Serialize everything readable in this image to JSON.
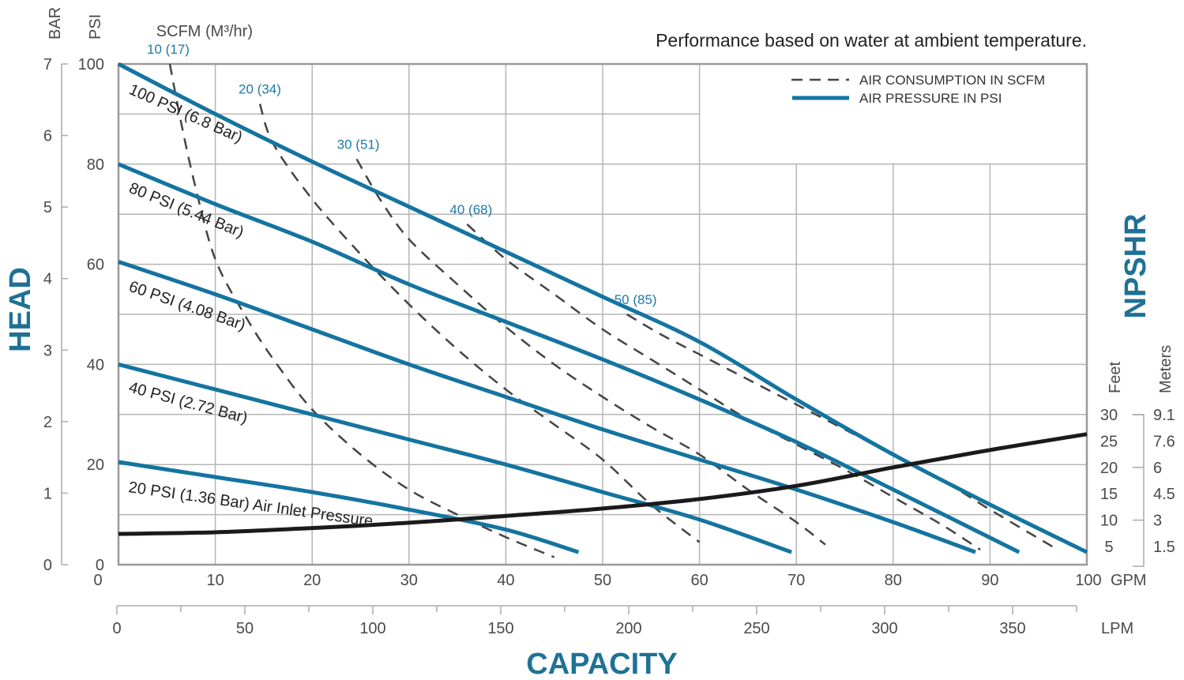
{
  "chart_data": {
    "type": "line",
    "title": "Performance based on water at ambient temperature.",
    "xlabel": "CAPACITY",
    "ylabel": "HEAD",
    "y2label": "NPSHR",
    "x_unit": "GPM",
    "x2_unit": "LPM",
    "y_unit_psi": "PSI",
    "y_unit_bar": "BAR",
    "scfm_header": "SCFM (M³/hr)",
    "y2_unit_feet": "Feet",
    "y2_unit_meters": "Meters",
    "xlim": [
      0,
      100
    ],
    "ylim": [
      0,
      100
    ],
    "x_ticks": [
      "0",
      "10",
      "20",
      "30",
      "40",
      "50",
      "60",
      "70",
      "80",
      "90",
      "100"
    ],
    "x2_ticks": [
      "0",
      "50",
      "100",
      "150",
      "200",
      "250",
      "300",
      "350"
    ],
    "y_ticks_psi": [
      "0",
      "20",
      "40",
      "60",
      "80",
      "100"
    ],
    "y_ticks_bar": [
      "0",
      "1",
      "2",
      "3",
      "4",
      "5",
      "6",
      "7"
    ],
    "y2_ticks_feet": [
      "5",
      "10",
      "15",
      "20",
      "25",
      "30"
    ],
    "y2_ticks_meters": [
      "1.5",
      "3",
      "4.5",
      "6",
      "7.6",
      "9.1"
    ],
    "grid": true,
    "legend": {
      "position": "top-right",
      "entries": [
        {
          "label": "AIR CONSUMPTION IN SCFM",
          "style": "dashed",
          "color": "#444444"
        },
        {
          "label": "AIR PRESSURE IN PSI",
          "style": "solid",
          "color": "#1474a0"
        }
      ]
    },
    "colors": {
      "pressure": "#1474a0",
      "air": "#444444",
      "npshr": "#1a1a1a",
      "grid": "#b5b5b5",
      "accent": "#1f7196"
    },
    "pressure_series": [
      {
        "name": "100 PSI (6.8 Bar)",
        "points": [
          [
            0,
            100
          ],
          [
            10,
            90
          ],
          [
            20,
            80.5
          ],
          [
            30,
            71.5
          ],
          [
            40,
            62.5
          ],
          [
            50,
            53.5
          ],
          [
            60,
            44.5
          ],
          [
            70,
            33
          ],
          [
            80,
            22
          ],
          [
            90,
            12
          ],
          [
            100,
            2.5
          ]
        ]
      },
      {
        "name": "80 PSI (5.44 Bar)",
        "points": [
          [
            0,
            80
          ],
          [
            10,
            72
          ],
          [
            20,
            64.5
          ],
          [
            30,
            56
          ],
          [
            40,
            48.5
          ],
          [
            50,
            41
          ],
          [
            60,
            33
          ],
          [
            70,
            24.5
          ],
          [
            80,
            15
          ],
          [
            93,
            2.5
          ]
        ]
      },
      {
        "name": "60 PSI (4.08 Bar)",
        "points": [
          [
            0,
            60.5
          ],
          [
            10,
            54
          ],
          [
            20,
            47
          ],
          [
            30,
            40
          ],
          [
            40,
            33.5
          ],
          [
            50,
            27
          ],
          [
            60,
            21
          ],
          [
            70,
            15
          ],
          [
            80,
            8.5
          ],
          [
            88.5,
            2.5
          ]
        ]
      },
      {
        "name": "40 PSI (2.72 Bar)",
        "points": [
          [
            0,
            40
          ],
          [
            10,
            35
          ],
          [
            20,
            30
          ],
          [
            30,
            25
          ],
          [
            40,
            20
          ],
          [
            50,
            14.5
          ],
          [
            60,
            9
          ],
          [
            69.5,
            2.5
          ]
        ]
      },
      {
        "name": "20 PSI (1.36 Bar) Air Inlet Pressure",
        "points": [
          [
            0,
            20.5
          ],
          [
            10,
            17.5
          ],
          [
            20,
            14.5
          ],
          [
            30,
            11
          ],
          [
            40,
            7
          ],
          [
            47.5,
            2.5
          ]
        ]
      }
    ],
    "air_series": [
      {
        "name": "10 (17)",
        "points": [
          [
            5.3,
            100
          ],
          [
            6.5,
            88
          ],
          [
            8,
            75
          ],
          [
            10,
            61
          ],
          [
            13,
            50
          ],
          [
            16,
            41
          ],
          [
            20,
            31
          ],
          [
            25,
            22
          ],
          [
            30,
            15
          ],
          [
            35,
            10
          ],
          [
            40,
            5.5
          ],
          [
            45,
            1.5
          ]
        ]
      },
      {
        "name": "20 (34)",
        "points": [
          [
            14.6,
            92
          ],
          [
            16,
            84
          ],
          [
            20,
            73
          ],
          [
            25,
            62
          ],
          [
            30,
            52
          ],
          [
            35,
            43
          ],
          [
            40,
            35
          ],
          [
            45,
            28
          ],
          [
            50,
            21
          ],
          [
            55,
            12
          ],
          [
            60,
            4.5
          ]
        ]
      },
      {
        "name": "30 (51)",
        "points": [
          [
            24.6,
            81
          ],
          [
            27,
            73
          ],
          [
            30,
            65
          ],
          [
            35,
            56
          ],
          [
            40,
            47.5
          ],
          [
            45,
            40
          ],
          [
            50,
            33.5
          ],
          [
            55,
            27.5
          ],
          [
            60,
            22
          ],
          [
            65,
            15
          ],
          [
            70,
            8.5
          ],
          [
            73,
            4
          ]
        ]
      },
      {
        "name": "40 (68)",
        "points": [
          [
            36,
            68
          ],
          [
            40,
            61
          ],
          [
            45,
            54
          ],
          [
            50,
            47
          ],
          [
            55,
            41
          ],
          [
            60,
            35
          ],
          [
            65,
            29
          ],
          [
            70,
            24
          ],
          [
            75,
            19
          ],
          [
            80,
            13.5
          ],
          [
            85,
            8
          ],
          [
            89,
            3
          ]
        ]
      },
      {
        "name": "50 (85)",
        "points": [
          [
            52.5,
            50
          ],
          [
            56,
            46
          ],
          [
            60,
            42
          ],
          [
            65,
            37
          ],
          [
            70,
            32
          ],
          [
            75,
            27
          ],
          [
            80,
            22
          ],
          [
            85,
            17
          ],
          [
            90,
            11
          ],
          [
            97,
            3
          ]
        ]
      }
    ],
    "npshr_series": {
      "name": "NPSHR (Feet)",
      "points": [
        [
          0,
          7.4
        ],
        [
          10,
          7.7
        ],
        [
          20,
          8.5
        ],
        [
          30,
          9.5
        ],
        [
          40,
          10.8
        ],
        [
          50,
          12.2
        ],
        [
          60,
          14
        ],
        [
          70,
          16.5
        ],
        [
          80,
          20
        ],
        [
          90,
          23.3
        ],
        [
          100,
          26.3
        ]
      ]
    }
  }
}
